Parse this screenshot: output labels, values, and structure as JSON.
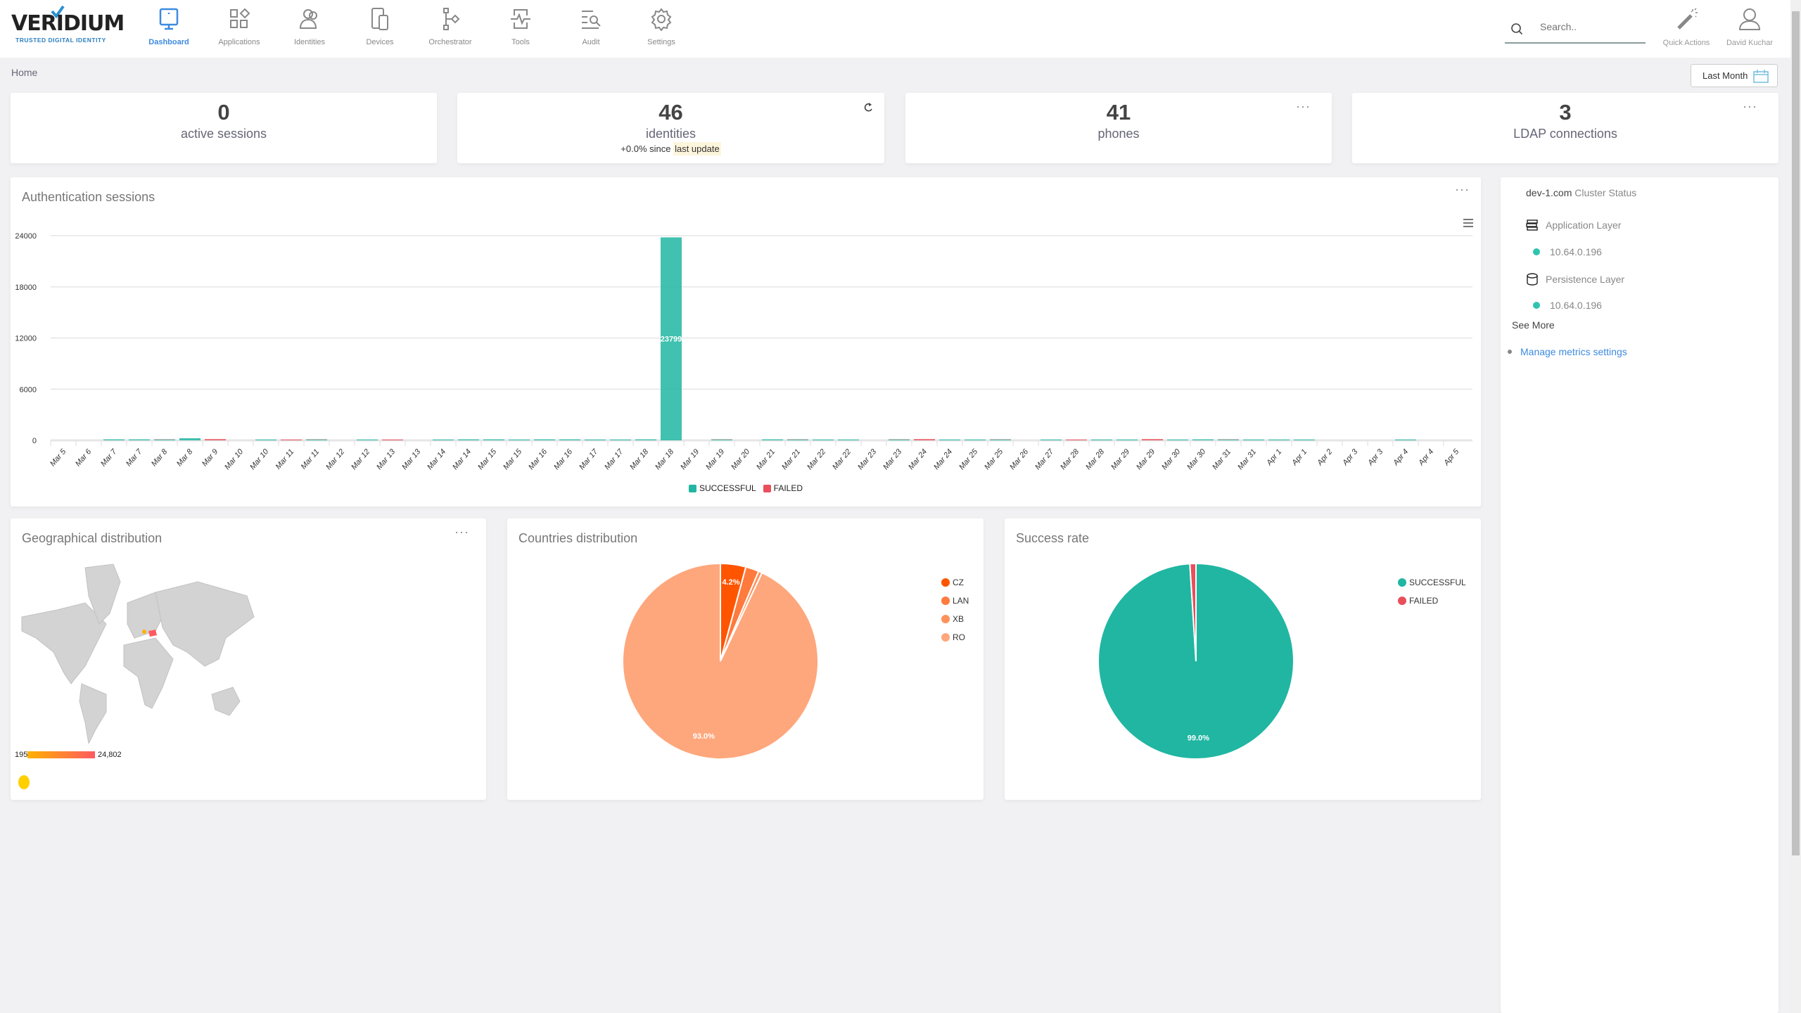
{
  "brand": {
    "name": "VERIDIUM",
    "tagline": "TRUSTED DIGITAL IDENTITY"
  },
  "nav": {
    "items": [
      {
        "label": "Dashboard",
        "icon": "monitor-icon",
        "active": true
      },
      {
        "label": "Applications",
        "icon": "apps-grid-icon"
      },
      {
        "label": "Identities",
        "icon": "users-icon"
      },
      {
        "label": "Devices",
        "icon": "devices-icon"
      },
      {
        "label": "Orchestrator",
        "icon": "flow-icon"
      },
      {
        "label": "Tools",
        "icon": "pulse-tablet-icon"
      },
      {
        "label": "Audit",
        "icon": "audit-search-icon"
      },
      {
        "label": "Settings",
        "icon": "gear-icon"
      }
    ]
  },
  "search": {
    "placeholder": "Search.."
  },
  "header_actions": {
    "quick_actions": "Quick Actions",
    "user": "David Kuchar"
  },
  "breadcrumb": "Home",
  "date_range": "Last Month",
  "stats": [
    {
      "value": "0",
      "label": "active sessions"
    },
    {
      "value": "46",
      "label": "identities",
      "change": "+0.0% since",
      "change_hl": "last update"
    },
    {
      "value": "41",
      "label": "phones"
    },
    {
      "value": "3",
      "label": "LDAP connections"
    }
  ],
  "auth_sessions": {
    "title": "Authentication sessions"
  },
  "cluster": {
    "domain": "dev-1.com",
    "title": "Cluster Status",
    "app_layer": "Application Layer",
    "app_ip": "10.64.0.196",
    "persist_layer": "Persistence Layer",
    "persist_ip": "10.64.0.196",
    "see_more": "See More",
    "manage_link": "Manage metrics settings",
    "status_color": "#2ec4b0"
  },
  "geo": {
    "title": "Geographical distribution",
    "scale_min": "195",
    "scale_max": "24,802",
    "colors": {
      "low": "#ffb000",
      "high": "#ff5a5f"
    }
  },
  "colors": {
    "successful": "#20b6a2",
    "failed": "#e84f5b",
    "accent": "#3d8ae0"
  },
  "chart_data": [
    {
      "type": "bar",
      "title": "Authentication sessions",
      "ylim": [
        0,
        24000
      ],
      "yticks": [
        0,
        6000,
        12000,
        18000,
        24000
      ],
      "grid": true,
      "legend": "bottom",
      "categories": [
        "Mar 5",
        "Mar 6",
        "Mar 7",
        "Mar 7",
        "Mar 8",
        "Mar 8",
        "Mar 9",
        "Mar 10",
        "Mar 10",
        "Mar 11",
        "Mar 11",
        "Mar 12",
        "Mar 12",
        "Mar 13",
        "Mar 13",
        "Mar 14",
        "Mar 14",
        "Mar 15",
        "Mar 15",
        "Mar 16",
        "Mar 16",
        "Mar 17",
        "Mar 17",
        "Mar 18",
        "Mar 18",
        "Mar 19",
        "Mar 19",
        "Mar 20",
        "Mar 21",
        "Mar 21",
        "Mar 22",
        "Mar 22",
        "Mar 23",
        "Mar 23",
        "Mar 24",
        "Mar 24",
        "Mar 25",
        "Mar 25",
        "Mar 26",
        "Mar 27",
        "Mar 28",
        "Mar 28",
        "Mar 29",
        "Mar 29",
        "Mar 30",
        "Mar 30",
        "Mar 31",
        "Mar 31",
        "Apr 1",
        "Apr 1",
        "Apr 2",
        "Apr 3",
        "Apr 3",
        "Apr 4",
        "Apr 4",
        "Apr 5"
      ],
      "series": [
        {
          "name": "SUCCESSFUL",
          "values": [
            0,
            0,
            120,
            120,
            100,
            250,
            0,
            0,
            100,
            0,
            100,
            0,
            100,
            0,
            0,
            100,
            120,
            120,
            100,
            120,
            120,
            100,
            100,
            120,
            23799,
            0,
            100,
            0,
            120,
            100,
            100,
            100,
            0,
            100,
            0,
            100,
            100,
            100,
            0,
            100,
            0,
            100,
            100,
            0,
            100,
            120,
            100,
            100,
            100,
            100,
            0,
            0,
            0,
            100,
            0,
            0
          ]
        },
        {
          "name": "FAILED",
          "values": [
            0,
            0,
            0,
            0,
            30,
            0,
            150,
            0,
            0,
            100,
            30,
            0,
            0,
            100,
            0,
            0,
            0,
            0,
            0,
            0,
            0,
            0,
            0,
            0,
            0,
            0,
            30,
            0,
            0,
            30,
            0,
            0,
            0,
            30,
            150,
            0,
            0,
            30,
            0,
            0,
            100,
            0,
            0,
            150,
            0,
            0,
            30,
            0,
            0,
            0,
            0,
            0,
            0,
            0,
            0,
            0
          ]
        }
      ],
      "data_labels": {
        "24": "23799"
      }
    },
    {
      "type": "pie",
      "title": "Countries distribution",
      "legend": "top-right",
      "slices": [
        {
          "name": "CZ",
          "value": 4.2,
          "color": "#ff5500",
          "label": "4.2%"
        },
        {
          "name": "LAN",
          "value": 2.2,
          "color": "#ff7a3d"
        },
        {
          "name": "XB",
          "value": 0.6,
          "color": "#ff915a"
        },
        {
          "name": "RO",
          "value": 93.0,
          "color": "#fea77c",
          "label": "93.0%"
        }
      ]
    },
    {
      "type": "pie",
      "title": "Success rate",
      "legend": "top-right",
      "slices": [
        {
          "name": "SUCCESSFUL",
          "value": 99.0,
          "color": "#20b6a2",
          "label": "99.0%"
        },
        {
          "name": "FAILED",
          "value": 1.0,
          "color": "#e84f5b"
        }
      ]
    }
  ]
}
